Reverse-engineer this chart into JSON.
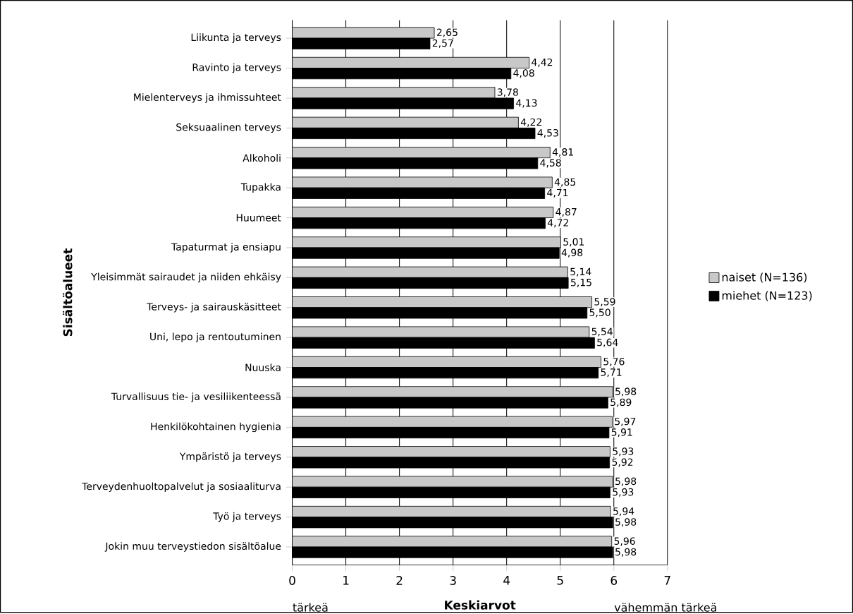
{
  "chart_data": {
    "type": "bar",
    "orientation": "horizontal",
    "xlabel": "Keskiarvot",
    "ylabel": "Sisältöalueet",
    "categories": [
      "Liikunta ja terveys",
      "Ravinto ja terveys",
      "Mielenterveys ja ihmissuhteet",
      "Seksuaalinen terveys",
      "Alkoholi",
      "Tupakka",
      "Huumeet",
      "Tapaturmat ja ensiapu",
      "Yleisimmät sairaudet ja niiden ehkäisy",
      "Terveys- ja sairauskäsitteet",
      "Uni, lepo ja rentoutuminen",
      "Nuuska",
      "Turvallisuus tie- ja vesiliikenteessä",
      "Henkilökohtainen hygienia",
      "Ympäristö ja terveys",
      "Terveydenhuoltopalvelut ja sosiaaliturva",
      "Työ ja terveys",
      "Jokin muu terveystiedon sisältöalue"
    ],
    "series": [
      {
        "name": "naiset (N=136)",
        "color": "#c8c8c8",
        "values": [
          2.65,
          4.42,
          3.78,
          4.22,
          4.81,
          4.85,
          4.87,
          5.01,
          5.14,
          5.59,
          5.54,
          5.76,
          5.98,
          5.97,
          5.93,
          5.98,
          5.94,
          5.96
        ],
        "value_labels": [
          "2,65",
          "4,42",
          "3,78",
          "4,22",
          "4,81",
          "4,85",
          "4,87",
          "5,01",
          "5,14",
          "5,59",
          "5,54",
          "5,76",
          "5,98",
          "5,97",
          "5,93",
          "5,98",
          "5,94",
          "5,96"
        ]
      },
      {
        "name": "miehet (N=123)",
        "color": "#000000",
        "values": [
          2.57,
          4.08,
          4.13,
          4.53,
          4.58,
          4.71,
          4.72,
          4.98,
          5.15,
          5.5,
          5.64,
          5.71,
          5.89,
          5.91,
          5.92,
          5.93,
          5.98,
          5.98
        ],
        "value_labels": [
          "2,57",
          "4,08",
          "4,13",
          "4,53",
          "4,58",
          "4,71",
          "4,72",
          "4,98",
          "5,15",
          "5,50",
          "5,64",
          "5,71",
          "5,89",
          "5,91",
          "5,92",
          "5,93",
          "5,98",
          "5,98"
        ]
      }
    ],
    "xlim": [
      0,
      7
    ],
    "xticks": [
      0,
      1,
      2,
      3,
      4,
      5,
      6,
      7
    ],
    "grid": "x",
    "legend": "right",
    "annotations": [
      "tärkeä",
      "vähemmän tärkeä"
    ]
  }
}
